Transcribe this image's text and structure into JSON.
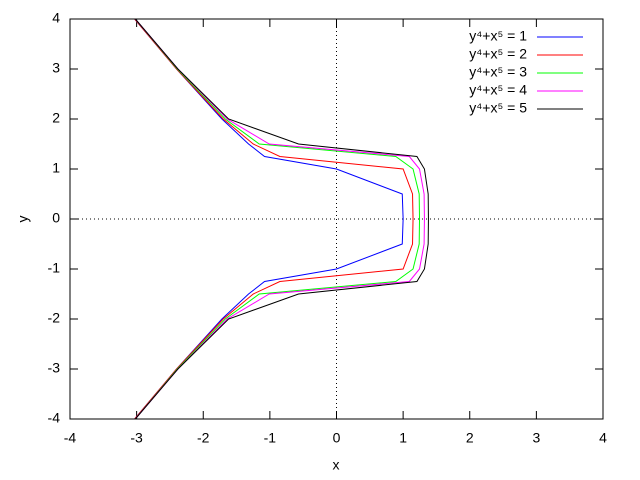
{
  "chart_data": {
    "type": "line",
    "xlabel": "x",
    "ylabel": "y",
    "xlim": [
      -4,
      4
    ],
    "ylim": [
      -4,
      4
    ],
    "xticks": [
      -4,
      -3,
      -2,
      -1,
      0,
      1,
      2,
      3,
      4
    ],
    "yticks": [
      -4,
      -3,
      -2,
      -1,
      0,
      1,
      2,
      3,
      4
    ],
    "zero_axes": true,
    "legend": "top-right",
    "series": [
      {
        "name": "y⁴+x⁵ = 1",
        "color": "#0000ff",
        "x": [
          -3.03,
          -2.4,
          -1.72,
          -1.32,
          -1.08,
          0,
          0.987,
          1,
          0.987,
          0,
          -1.08,
          -1.32,
          -1.72,
          -2.4,
          -3.03
        ],
        "values": [
          -4,
          -3,
          -2,
          -1.5,
          -1.25,
          -1,
          -0.5,
          0,
          0.5,
          1,
          1.25,
          1.5,
          2,
          3,
          4
        ]
      },
      {
        "name": "y⁴+x⁵ = 2",
        "color": "#ff0000",
        "x": [
          -3.03,
          -2.4,
          -1.7,
          -1.25,
          -0.85,
          1,
          1.141,
          1.149,
          1.141,
          1,
          -0.85,
          -1.25,
          -1.7,
          -2.4,
          -3.03
        ],
        "values": [
          -4,
          -3,
          -2,
          -1.5,
          -1.25,
          -1,
          -0.5,
          0,
          0.5,
          1,
          1.25,
          1.5,
          2,
          3,
          4
        ]
      },
      {
        "name": "y⁴+x⁵ = 3",
        "color": "#00ff00",
        "x": [
          -3.02,
          -2.39,
          -1.67,
          -1.16,
          0.89,
          1.149,
          1.241,
          1.246,
          1.241,
          1.149,
          0.89,
          -1.16,
          -1.67,
          -2.39,
          -3.02
        ],
        "values": [
          -4,
          -3,
          -2,
          -1.5,
          -1.25,
          -1,
          -0.5,
          0,
          0.5,
          1,
          1.25,
          1.5,
          2,
          3,
          4
        ]
      },
      {
        "name": "y⁴+x⁵ = 4",
        "color": "#ff00ff",
        "x": [
          -3.02,
          -2.38,
          -1.64,
          -1.01,
          1.093,
          1.246,
          1.315,
          1.32,
          1.315,
          1.246,
          1.093,
          -1.01,
          -1.64,
          -2.38,
          -3.02
        ],
        "values": [
          -4,
          -3,
          -2,
          -1.5,
          -1.25,
          -1,
          -0.5,
          0,
          0.5,
          1,
          1.25,
          1.5,
          2,
          3,
          4
        ]
      },
      {
        "name": "y⁴+x⁵ = 5",
        "color": "#000000",
        "x": [
          -3.02,
          -2.38,
          -1.62,
          -0.57,
          1.207,
          1.32,
          1.376,
          1.38,
          1.376,
          1.32,
          1.207,
          -0.57,
          -1.62,
          -2.38,
          -3.02
        ],
        "values": [
          -4,
          -3,
          -2,
          -1.5,
          -1.25,
          -1,
          -0.5,
          0,
          0.5,
          1,
          1.25,
          1.5,
          2,
          3,
          4
        ]
      }
    ]
  }
}
